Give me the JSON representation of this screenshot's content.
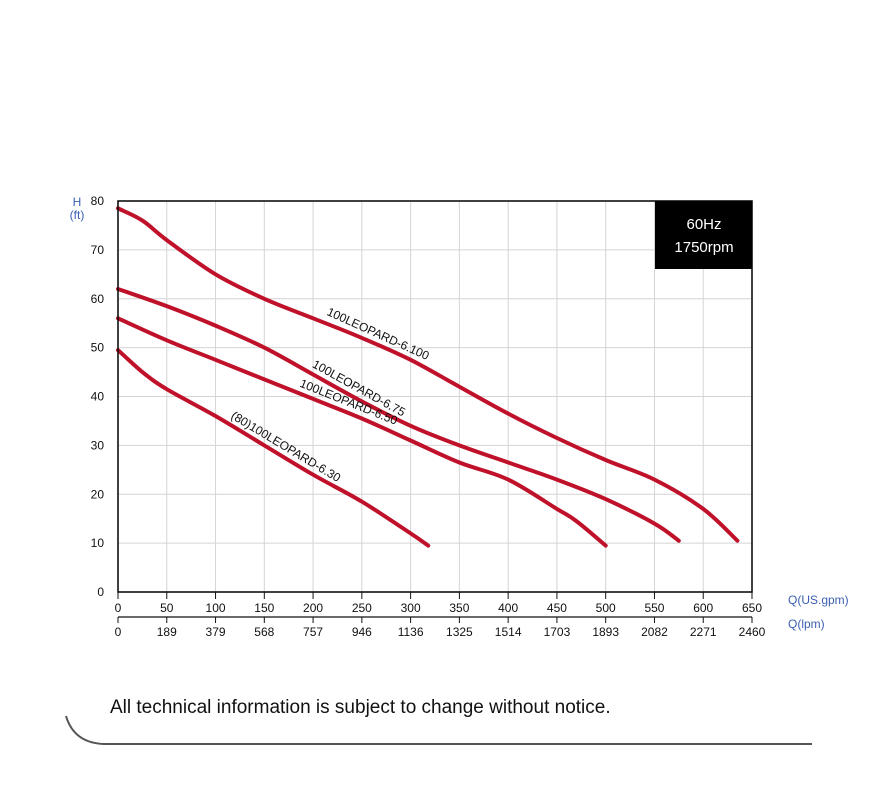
{
  "chart_data": {
    "type": "line",
    "frequency_label": "60Hz",
    "speed_label": "1750rpm",
    "y_axis": {
      "unit_top": "H",
      "unit_bottom": "(ft)",
      "ticks": [
        0,
        10,
        20,
        30,
        40,
        50,
        60,
        70,
        80
      ],
      "ylim": [
        0,
        80
      ]
    },
    "x_axis_primary": {
      "unit": "Q(US.gpm)",
      "ticks": [
        "0",
        "50",
        "100",
        "150",
        "200",
        "250",
        "300",
        "350",
        "400",
        "450",
        "500",
        "550",
        "600",
        "650"
      ],
      "xlim": [
        0,
        650
      ]
    },
    "x_axis_secondary": {
      "unit": "Q(lpm)",
      "ticks": [
        "0",
        "189",
        "379",
        "568",
        "757",
        "946",
        "1136",
        "1325",
        "1514",
        "1703",
        "1893",
        "2082",
        "2271",
        "2460"
      ]
    },
    "grid": true,
    "series": [
      {
        "name": "100LEOPARD-6.100",
        "x": [
          0,
          25,
          50,
          100,
          150,
          200,
          250,
          300,
          350,
          400,
          450,
          500,
          550,
          600,
          635
        ],
        "y": [
          78.5,
          76,
          72,
          65,
          60,
          56,
          52,
          47.5,
          42,
          36.5,
          31.5,
          27,
          23,
          17,
          10.5
        ]
      },
      {
        "name": "100LEOPARD-6.75",
        "x": [
          0,
          50,
          100,
          150,
          200,
          250,
          300,
          350,
          400,
          450,
          500,
          550,
          575
        ],
        "y": [
          62,
          58.5,
          54.5,
          50,
          44.5,
          39,
          34,
          30,
          26.5,
          23,
          19,
          14,
          10.5
        ]
      },
      {
        "name": "100LEOPARD-6.50",
        "x": [
          0,
          50,
          100,
          150,
          200,
          250,
          300,
          350,
          400,
          450,
          470,
          500
        ],
        "y": [
          56,
          51.5,
          47.5,
          43.5,
          39.5,
          35.5,
          31,
          26.5,
          23,
          17,
          14.5,
          9.5
        ]
      },
      {
        "name": "(80)100LEOPARD-6.30",
        "x": [
          0,
          25,
          50,
          100,
          150,
          200,
          250,
          300,
          318
        ],
        "y": [
          49.5,
          45,
          41.5,
          36,
          30,
          24,
          18.5,
          12,
          9.5
        ]
      }
    ]
  },
  "notice": "All technical information is subject to change without notice."
}
